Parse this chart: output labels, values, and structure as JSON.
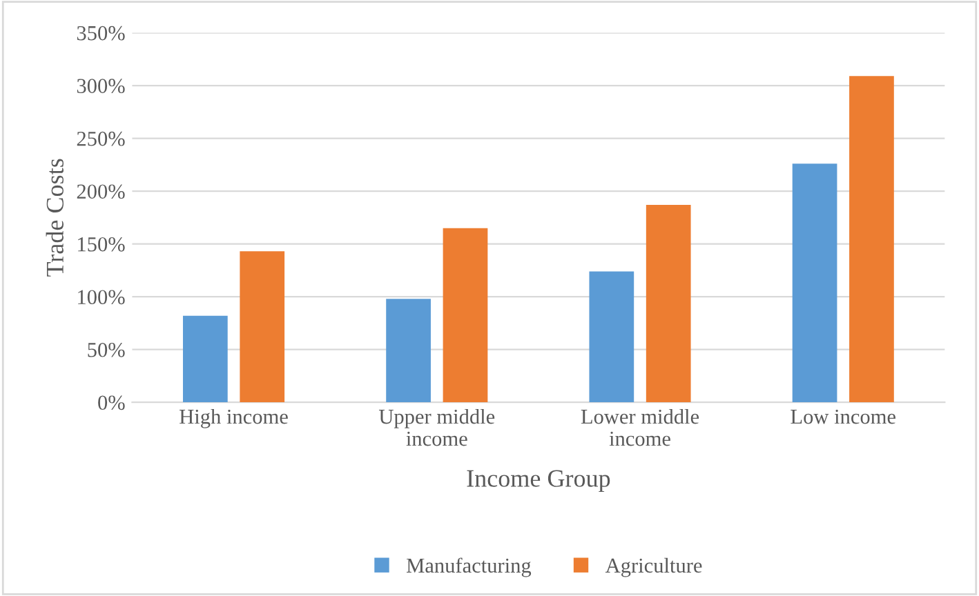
{
  "chart_data": {
    "type": "bar",
    "xlabel": "Income Group",
    "ylabel": "Trade Costs",
    "categories": [
      "High income",
      "Upper middle\nincome",
      "Lower middle\nincome",
      "Low income"
    ],
    "series": [
      {
        "name": "Manufacturing",
        "color": "#5b9bd5",
        "values": [
          82,
          98,
          124,
          226
        ]
      },
      {
        "name": "Agriculture",
        "color": "#ed7d31",
        "values": [
          143,
          165,
          187,
          309
        ]
      }
    ],
    "ylim": [
      0,
      350
    ],
    "yticks": [
      {
        "value": 0,
        "label": "0%"
      },
      {
        "value": 50,
        "label": "50%"
      },
      {
        "value": 100,
        "label": "100%"
      },
      {
        "value": 150,
        "label": "150%"
      },
      {
        "value": 200,
        "label": "200%"
      },
      {
        "value": 250,
        "label": "250%"
      },
      {
        "value": 300,
        "label": "300%"
      },
      {
        "value": 350,
        "label": "350%"
      }
    ],
    "grid": "y",
    "legend": "bottom"
  }
}
